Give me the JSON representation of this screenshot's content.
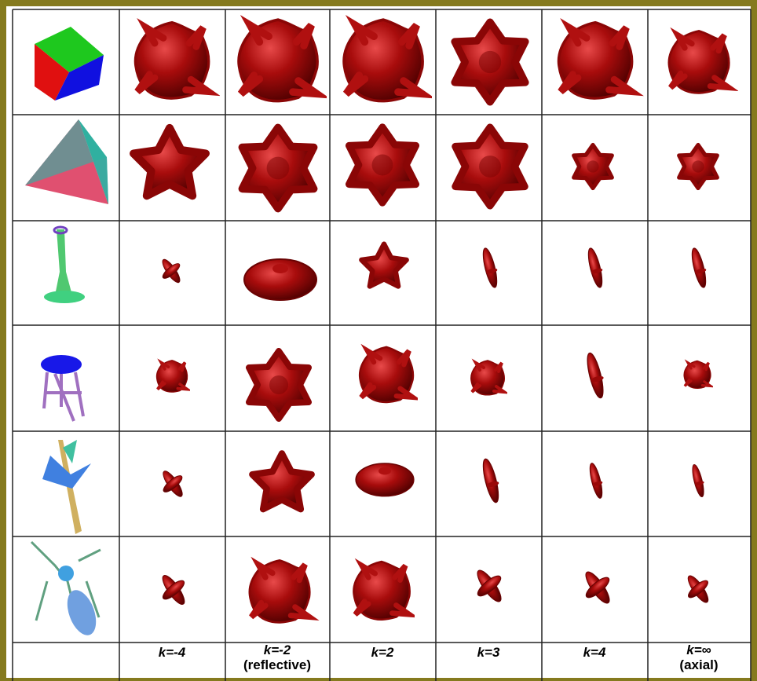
{
  "columns": [
    {
      "label": "k=-4"
    },
    {
      "label": "k=-2",
      "note": "(reflective)"
    },
    {
      "label": "k=2"
    },
    {
      "label": "k=3"
    },
    {
      "label": "k=4"
    },
    {
      "label": "k=∞",
      "note": "(axial)"
    }
  ]
}
